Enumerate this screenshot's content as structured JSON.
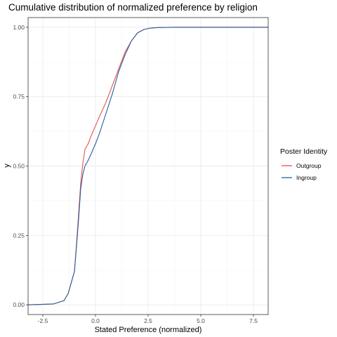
{
  "chart_data": {
    "type": "line",
    "title": "Cumulative distribution of normalized preference by religion",
    "xlabel": "Stated Preference (normalized)",
    "ylabel": "y",
    "xlim": [
      -3.2,
      8.2
    ],
    "ylim": [
      -0.035,
      1.035
    ],
    "x_ticks": [
      -2.5,
      0.0,
      2.5,
      5.0,
      7.5
    ],
    "x_tick_labels": [
      "-2.5",
      "0.0",
      "2.5",
      "5.0",
      "7.5"
    ],
    "y_ticks": [
      0,
      0.25,
      0.5,
      0.75,
      1.0
    ],
    "y_tick_labels": [
      "0.00",
      "0.25",
      "0.50",
      "0.75",
      "1.00"
    ],
    "grid": true,
    "legend": {
      "title": "Poster Identity",
      "position": "right"
    },
    "series": [
      {
        "name": "Outgroup",
        "color": "#e8524a",
        "x": [
          -3.2,
          -2.0,
          -1.5,
          -1.3,
          -1.15,
          -1.0,
          -0.9,
          -0.8,
          -0.7,
          -0.6,
          -0.5,
          -0.35,
          -0.2,
          0.0,
          0.2,
          0.5,
          0.8,
          1.1,
          1.4,
          1.7,
          2.0,
          2.3,
          2.6,
          3.0,
          4.0,
          5.5,
          8.2
        ],
        "y": [
          0.0,
          0.003,
          0.015,
          0.04,
          0.08,
          0.12,
          0.22,
          0.33,
          0.44,
          0.51,
          0.56,
          0.58,
          0.61,
          0.645,
          0.68,
          0.73,
          0.79,
          0.85,
          0.91,
          0.95,
          0.98,
          0.992,
          0.997,
          0.999,
          1.0,
          1.0,
          1.0
        ]
      },
      {
        "name": "Ingroup",
        "color": "#2c5f9e",
        "x": [
          -3.2,
          -2.0,
          -1.5,
          -1.3,
          -1.15,
          -1.0,
          -0.9,
          -0.8,
          -0.7,
          -0.6,
          -0.5,
          -0.35,
          -0.2,
          0.0,
          0.2,
          0.5,
          0.8,
          1.1,
          1.4,
          1.7,
          2.0,
          2.3,
          2.6,
          3.0,
          4.0,
          5.5,
          8.2
        ],
        "y": [
          0.0,
          0.003,
          0.015,
          0.04,
          0.08,
          0.12,
          0.21,
          0.31,
          0.42,
          0.47,
          0.5,
          0.52,
          0.545,
          0.58,
          0.62,
          0.69,
          0.76,
          0.84,
          0.9,
          0.95,
          0.98,
          0.992,
          0.997,
          0.999,
          1.0,
          1.0,
          1.0
        ]
      }
    ]
  }
}
